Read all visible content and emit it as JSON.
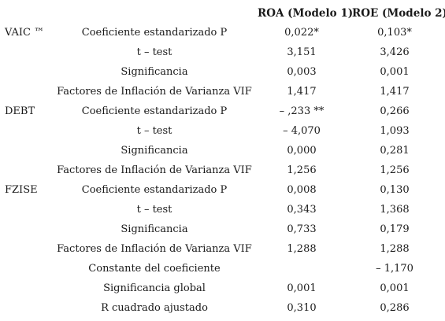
{
  "columns": {
    "roa": "ROA (Modelo 1)",
    "roe": "ROE (Modelo 2)"
  },
  "rows": [
    {
      "group": "VAIC ™",
      "label": "Coeficiente estandarizado P",
      "roa": "0,022*",
      "roe": "0,103*"
    },
    {
      "group": "",
      "label": "t – test",
      "roa": "3,151",
      "roe": "3,426"
    },
    {
      "group": "",
      "label": "Significancia",
      "roa": "0,003",
      "roe": "0,001"
    },
    {
      "group": "",
      "label": "Factores de Inflación de Varianza VIF",
      "roa": "1,417",
      "roe": "1,417"
    },
    {
      "group": "DEBT",
      "label": "Coeficiente estandarizado P",
      "roa": "– ,233 **",
      "roe": "0,266"
    },
    {
      "group": "",
      "label": "t – test",
      "roa": "– 4,070",
      "roe": "1,093"
    },
    {
      "group": "",
      "label": "Significancia",
      "roa": "0,000",
      "roe": "0,281"
    },
    {
      "group": "",
      "label": "Factores de Inflación de Varianza VIF",
      "roa": "1,256",
      "roe": "1,256"
    },
    {
      "group": "FZISE",
      "label": "Coeficiente estandarizado P",
      "roa": "0,008",
      "roe": "0,130"
    },
    {
      "group": "",
      "label": "t – test",
      "roa": "0,343",
      "roe": "1,368"
    },
    {
      "group": "",
      "label": "Significancia",
      "roa": "0,733",
      "roe": "0,179"
    },
    {
      "group": "",
      "label": "Factores de Inflación de Varianza VIF",
      "roa": "1,288",
      "roe": "1,288"
    },
    {
      "group": "",
      "label": "Constante del coeficiente",
      "roa": "",
      "roe": "– 1,170"
    },
    {
      "group": "",
      "label": "Significancia global",
      "roa": "0,001",
      "roe": "0,001"
    },
    {
      "group": "",
      "label": "R cuadrado ajustado",
      "roa": "0,310",
      "roe": "0,286"
    }
  ]
}
